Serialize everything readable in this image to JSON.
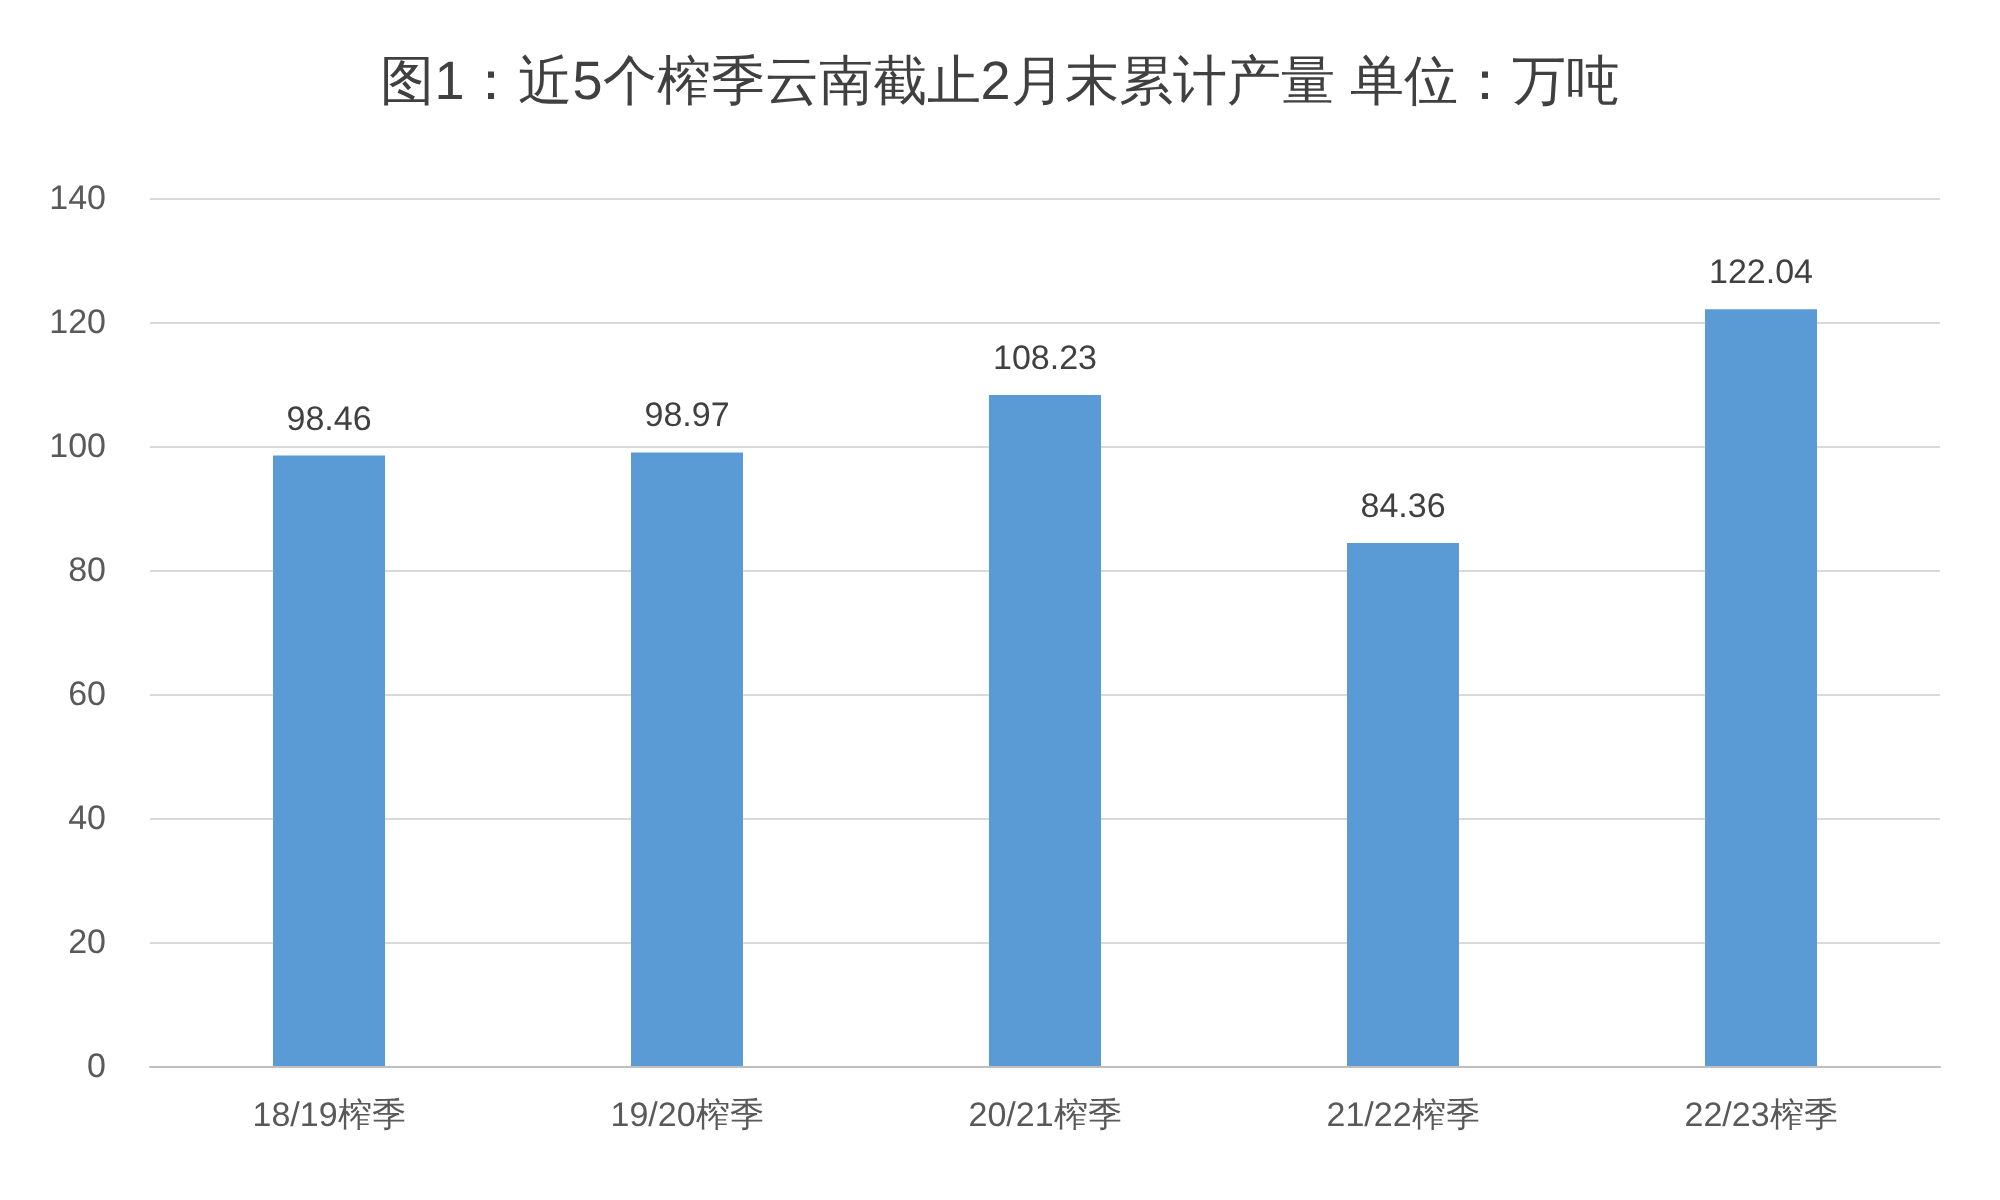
{
  "chart_data": {
    "type": "bar",
    "title": "图1：近5个榨季云南截止2月末累计产量 单位：万吨",
    "categories": [
      "18/19榨季",
      "19/20榨季",
      "20/21榨季",
      "21/22榨季",
      "22/23榨季"
    ],
    "values": [
      98.46,
      98.97,
      108.23,
      84.36,
      122.04
    ],
    "color": "#5b9bd5",
    "ylim": [
      0,
      140
    ],
    "yticks": [
      0,
      20,
      40,
      60,
      80,
      100,
      120,
      140
    ],
    "grid": "y",
    "data_labels": true
  }
}
